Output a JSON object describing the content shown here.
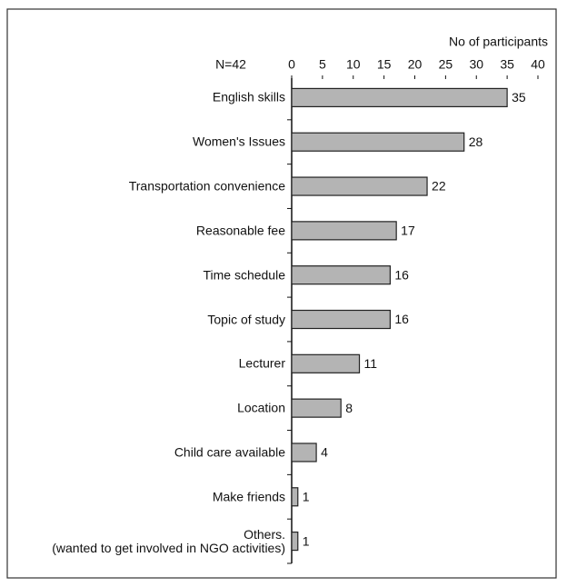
{
  "chart_data": {
    "type": "bar",
    "orientation": "horizontal",
    "axis_label": "No of participants",
    "annotation": "N=42",
    "categories": [
      "English skills",
      "Women's Issues",
      "Transportation convenience",
      "Reasonable fee",
      "Time schedule",
      "Topic of study",
      "Lecturer",
      "Location",
      "Child care available",
      "Make friends",
      "Others.\n(wanted to get involved in NGO activities)"
    ],
    "values": [
      35,
      28,
      22,
      17,
      16,
      16,
      11,
      8,
      4,
      1,
      1
    ],
    "color": "#b4b4b4",
    "xlim": [
      0,
      40
    ],
    "xticks": [
      0,
      5,
      10,
      15,
      20,
      25,
      30,
      35,
      40
    ],
    "grid": false
  }
}
